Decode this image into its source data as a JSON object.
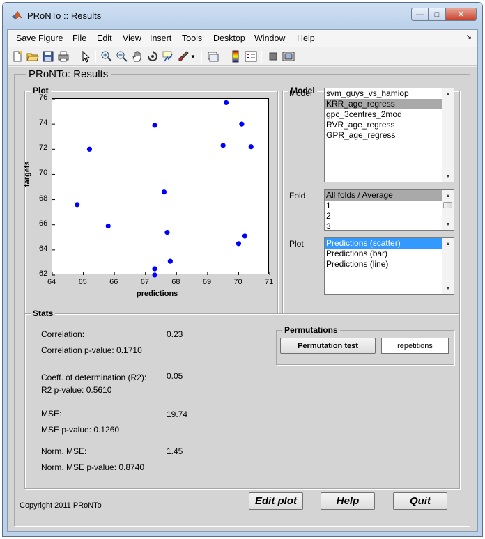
{
  "window": {
    "title": "PRoNTo :: Results"
  },
  "menu": [
    "Save Figure",
    "File",
    "Edit",
    "View",
    "Insert",
    "Tools",
    "Desktop",
    "Window",
    "Help"
  ],
  "toolbar_icons": [
    "new-figure-icon",
    "open-file-icon",
    "save-icon",
    "print-icon",
    "pointer-icon",
    "zoom-in-icon",
    "zoom-out-icon",
    "pan-icon",
    "rotate-icon",
    "data-cursor-icon",
    "brush-icon",
    "link-icon",
    "colorbar-icon",
    "legend-icon",
    "hide-plot-tools-icon",
    "show-plot-tools-icon"
  ],
  "panel_title": "PRoNTo: Results",
  "plot": {
    "group_title": "Plot",
    "chart_data": {
      "type": "scatter",
      "xlabel": "predictions",
      "ylabel": "targets",
      "xlim": [
        64,
        71
      ],
      "ylim": [
        62,
        76
      ],
      "xticks": [
        "64",
        "65",
        "66",
        "67",
        "68",
        "69",
        "70",
        "71"
      ],
      "yticks": [
        "62",
        "64",
        "66",
        "68",
        "70",
        "72",
        "74",
        "76"
      ],
      "marker_color": "#0000ff",
      "grid": false,
      "points": [
        [
          64.8,
          67.6
        ],
        [
          65.2,
          72.0
        ],
        [
          65.8,
          65.9
        ],
        [
          67.3,
          73.9
        ],
        [
          67.3,
          62.5
        ],
        [
          67.3,
          62.0
        ],
        [
          67.6,
          68.6
        ],
        [
          67.7,
          65.4
        ],
        [
          67.8,
          63.1
        ],
        [
          69.5,
          72.3
        ],
        [
          69.6,
          75.7
        ],
        [
          70.0,
          64.5
        ],
        [
          70.1,
          74.0
        ],
        [
          70.2,
          65.1
        ],
        [
          70.4,
          72.2
        ]
      ]
    }
  },
  "model": {
    "group_title": "Model",
    "model_label": "Model",
    "models": [
      "svm_guys_vs_hamiop",
      "KRR_age_regress",
      "gpc_3centres_2mod",
      "RVR_age_regress",
      "GPR_age_regress"
    ],
    "fold_label": "Fold",
    "folds": [
      "All folds / Average",
      "1",
      "2",
      "3"
    ],
    "plot_label": "Plot",
    "plots": [
      "Predictions (scatter)",
      "Predictions (bar)",
      "Predictions (line)"
    ]
  },
  "stats": {
    "group_title": "Stats",
    "correlation_label": "Correlation:",
    "correlation_value": "0.23",
    "correlation_p": "Correlation p-value: 0.1710",
    "r2_label": "Coeff. of determination (R2):",
    "r2_value": "0.05",
    "r2_p": "R2 p-value: 0.5610",
    "mse_label": "MSE:",
    "mse_value": "19.74",
    "mse_p": "MSE p-value: 0.1260",
    "nmse_label": "Norm. MSE:",
    "nmse_value": "1.45",
    "nmse_p": "Norm. MSE p-value: 0.8740"
  },
  "permutations": {
    "group_title": "Permutations",
    "test_button": "Permutation test",
    "repetitions": "repetitions"
  },
  "footer": {
    "copyright": "Copyright 2011 PRoNTo",
    "edit_plot": "Edit plot",
    "help": "Help",
    "quit": "Quit"
  },
  "colors": {
    "selection_blue": "#3399ff",
    "selection_grey": "#a9a9a9",
    "figure_bg": "#d4d4d4"
  }
}
